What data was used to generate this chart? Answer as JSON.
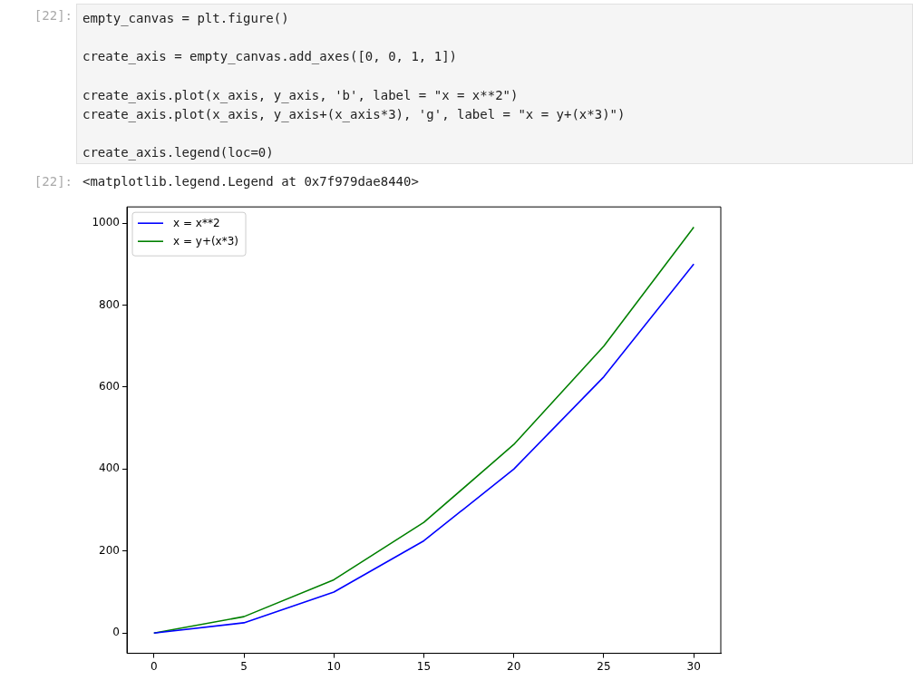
{
  "chart_data": {
    "type": "line",
    "annotations": [
      "[22]:",
      "empty_canvas = plt.figure()",
      "create_axis = empty_canvas.add_axes([0, 0, 1, 1])",
      "create_axis.plot(x_axis, y_axis, 'b', label = \"x = x**2\")",
      "create_axis.plot(x_axis, y_axis+(x_axis*3), 'g', label = \"x = y+(x*3)\")",
      "create_axis.legend(loc=0)",
      "[22]:",
      "<matplotlib.legend.Legend at 0x7f979dae8440>"
    ],
    "x": [
      0,
      5,
      10,
      15,
      20,
      25,
      30
    ],
    "series": [
      {
        "name": "x = x**2",
        "color": "#0000ff",
        "values": [
          0,
          25,
          100,
          225,
          400,
          625,
          900
        ]
      },
      {
        "name": "x = y+(x*3)",
        "color": "#008000",
        "values": [
          0,
          40,
          130,
          270,
          460,
          700,
          990
        ]
      }
    ],
    "xlim": [
      -1.5,
      31.5
    ],
    "xticks": [
      0,
      5,
      10,
      15,
      20,
      25,
      30
    ],
    "ylim": [
      -49.5,
      1039.5
    ],
    "yticks": [
      0,
      200,
      400,
      600,
      800,
      1000
    ],
    "grid": false,
    "legend": "top left",
    "marker": "none",
    "line_style": "solid"
  }
}
